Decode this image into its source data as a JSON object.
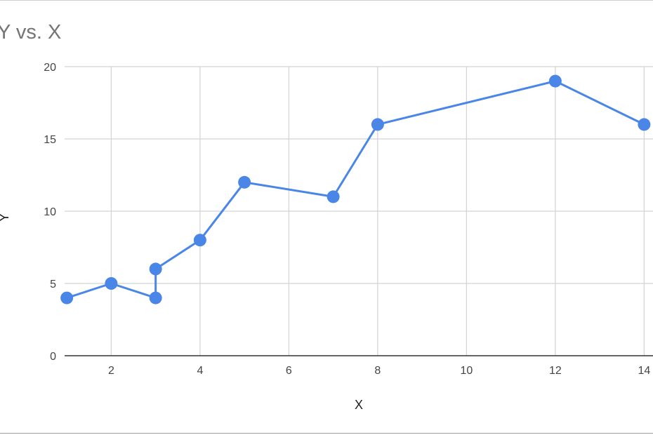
{
  "chart_data": {
    "type": "line",
    "title": "Y vs. X",
    "xlabel": "X",
    "ylabel": "Y",
    "xlim": [
      0.95,
      14.2
    ],
    "ylim": [
      0,
      20
    ],
    "x_ticks": [
      2,
      4,
      6,
      8,
      10,
      12,
      14
    ],
    "y_ticks": [
      0,
      5,
      10,
      15,
      20
    ],
    "grid": true,
    "legend": "none",
    "series": [
      {
        "color": "#4a86e8",
        "points": [
          {
            "x": 1,
            "y": 4
          },
          {
            "x": 2,
            "y": 5
          },
          {
            "x": 3,
            "y": 4
          },
          {
            "x": 3,
            "y": 6
          },
          {
            "x": 4,
            "y": 8
          },
          {
            "x": 5,
            "y": 12
          },
          {
            "x": 7,
            "y": 11
          },
          {
            "x": 8,
            "y": 16
          },
          {
            "x": 12,
            "y": 19
          },
          {
            "x": 14,
            "y": 16
          }
        ]
      }
    ]
  }
}
